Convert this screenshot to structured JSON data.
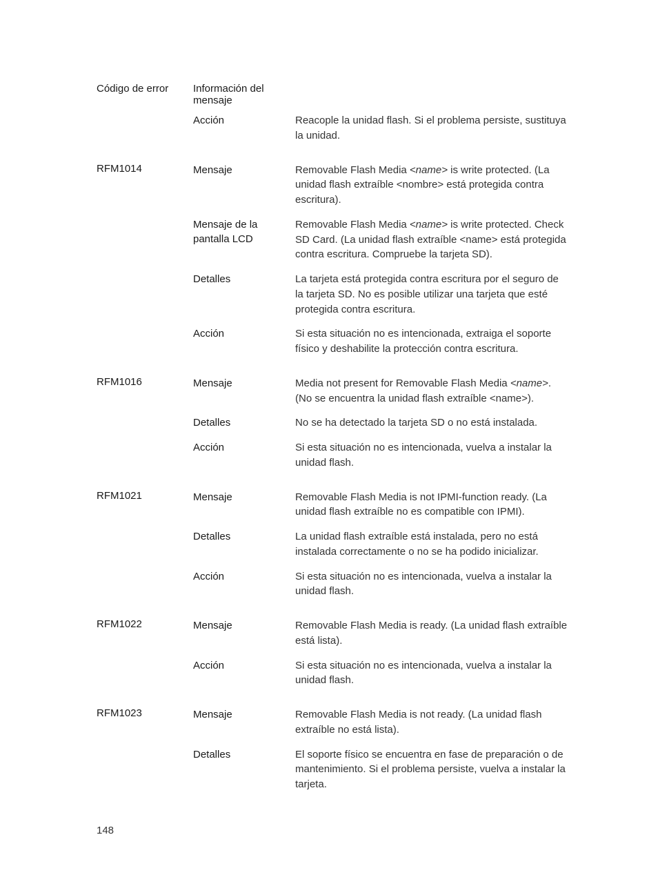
{
  "headers": {
    "code": "Código de error",
    "info": "Información del mensaje"
  },
  "labels": {
    "accion": "Acción",
    "mensaje": "Mensaje",
    "lcd": "Mensaje de la pantalla LCD",
    "detalles": "Detalles"
  },
  "topAction": "Reacople la unidad flash. Si el problema persiste, sustituya la unidad.",
  "rfm1014": {
    "code": "RFM1014",
    "mensaje_pre": "Removable Flash Media ",
    "mensaje_var": "<name>",
    "mensaje_post": " is write protected. (La unidad flash extraíble <nombre> está protegida contra escritura).",
    "lcd_pre": "Removable Flash Media ",
    "lcd_var": "<name>",
    "lcd_post": " is write protected. Check SD Card. (La unidad flash extraíble <name> está protegida contra escritura. Compruebe la tarjeta SD).",
    "detalles": "La tarjeta está protegida contra escritura por el seguro de la tarjeta SD. No es posible utilizar una tarjeta que esté protegida contra escritura.",
    "accion": "Si esta situación no es intencionada, extraiga el soporte físico y deshabilite la protección contra escritura."
  },
  "rfm1016": {
    "code": "RFM1016",
    "mensaje_pre": "Media not present for Removable Flash Media ",
    "mensaje_var": "<name>",
    "mensaje_post": ". (No se encuentra la unidad flash extraíble <name>).",
    "detalles": "No se ha detectado la tarjeta SD o no está instalada.",
    "accion": "Si esta situación no es intencionada, vuelva a instalar la unidad flash."
  },
  "rfm1021": {
    "code": "RFM1021",
    "mensaje": "Removable Flash Media is not IPMI-function ready. (La unidad flash extraíble no es compatible con IPMI).",
    "detalles": "La unidad flash extraíble está instalada, pero no está instalada correctamente o no se ha podido inicializar.",
    "accion": "Si esta situación no es intencionada, vuelva a instalar la unidad flash."
  },
  "rfm1022": {
    "code": "RFM1022",
    "mensaje": "Removable Flash Media is ready. (La unidad flash extraíble está lista).",
    "accion": "Si esta situación no es intencionada, vuelva a instalar la unidad flash."
  },
  "rfm1023": {
    "code": "RFM1023",
    "mensaje": "Removable Flash Media is not ready. (La unidad flash extraíble no está lista).",
    "detalles": "El soporte físico se encuentra en fase de preparación o de mantenimiento. Si el problema persiste, vuelva a instalar la tarjeta."
  },
  "pageNumber": "148"
}
